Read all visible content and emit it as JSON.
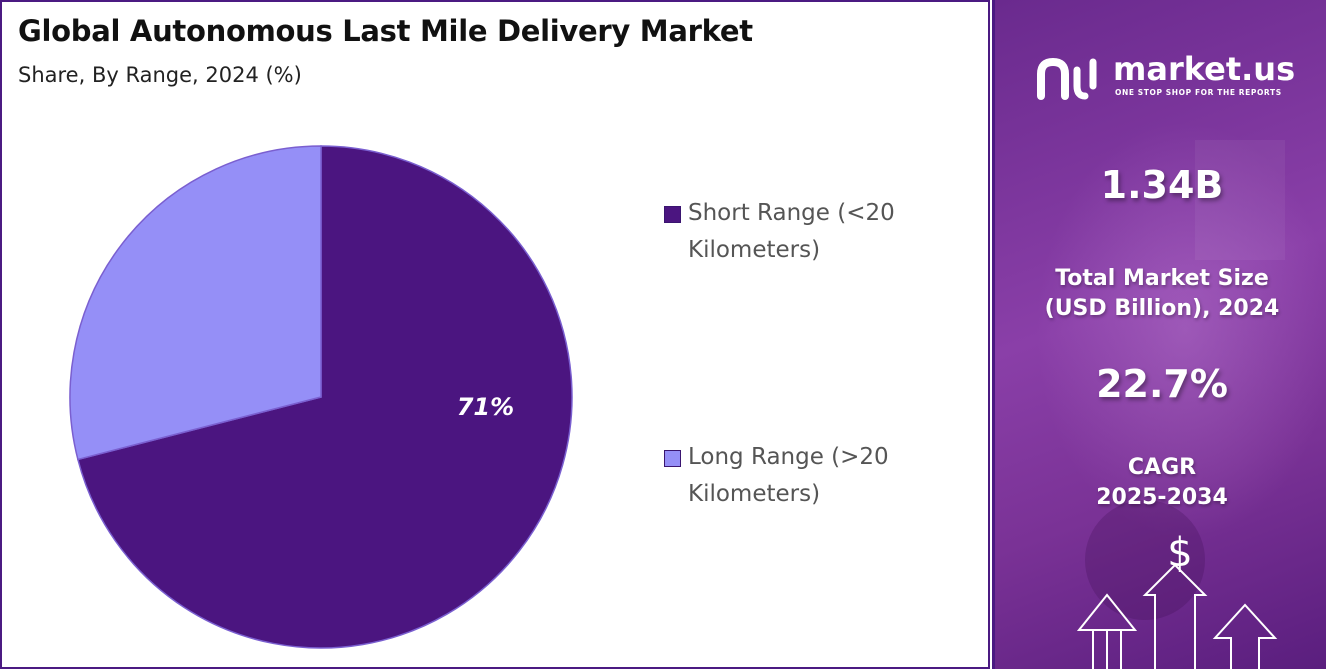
{
  "title": "Global Autonomous Last Mile Delivery Market",
  "subtitle": "Share, By Range, 2024 (%)",
  "chart_data": {
    "type": "pie",
    "title": "Global Autonomous Last Mile Delivery Market",
    "subtitle": "Share, By Range, 2024 (%)",
    "legend_position": "right",
    "slices": [
      {
        "label": "Short Range (<20 Kilometers)",
        "value": 71,
        "data_label": "71%",
        "color": "#4b1580"
      },
      {
        "label": "Long Range (>20 Kilometers)",
        "value": 29,
        "color": "#958ff7"
      }
    ]
  },
  "brand": {
    "name": "market.us",
    "tagline": "ONE STOP SHOP FOR THE REPORTS"
  },
  "stats": {
    "market_size_value": "1.34B",
    "market_size_label_line1": "Total Market Size",
    "market_size_label_line2": "(USD Billion), 2024",
    "cagr_value": "22.7%",
    "cagr_label_line1": "CAGR",
    "cagr_label_line2": "2025-2034"
  },
  "colors": {
    "primary": "#4b1580",
    "secondary": "#958ff7",
    "panel_accent": "#8a3fa8"
  },
  "icons": {
    "logo": "market-us-logo-icon",
    "currency": "dollar-icon",
    "growth": "up-arrow-icon"
  }
}
